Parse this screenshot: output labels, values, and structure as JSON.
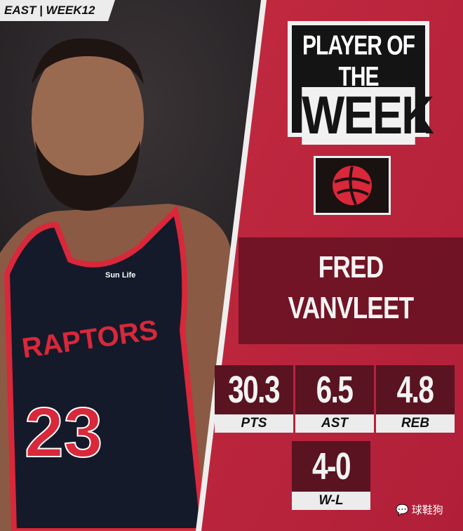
{
  "header": {
    "conference_week": "EAST | WEEK12"
  },
  "title": {
    "line1": "PLAYER OF THE",
    "line2": "WEEK"
  },
  "team_logo": {
    "icon": "raptors-basketball-logo-icon"
  },
  "player": {
    "first_name": "FRED",
    "last_name": "VANVLEET",
    "jersey_number": "23",
    "jersey_text": "RAPTORS",
    "sponsor": "Sun Life"
  },
  "stats": [
    {
      "value": "30.3",
      "label": "PTS"
    },
    {
      "value": "6.5",
      "label": "AST"
    },
    {
      "value": "4.8",
      "label": "REB"
    }
  ],
  "record": {
    "value": "4-0",
    "label": "W-L"
  },
  "watermark": "球鞋狗",
  "colors": {
    "panel_red": "#c0263e",
    "dark_red": "#5a1320",
    "jersey": "#141a2a",
    "accent": "#d8283a"
  }
}
